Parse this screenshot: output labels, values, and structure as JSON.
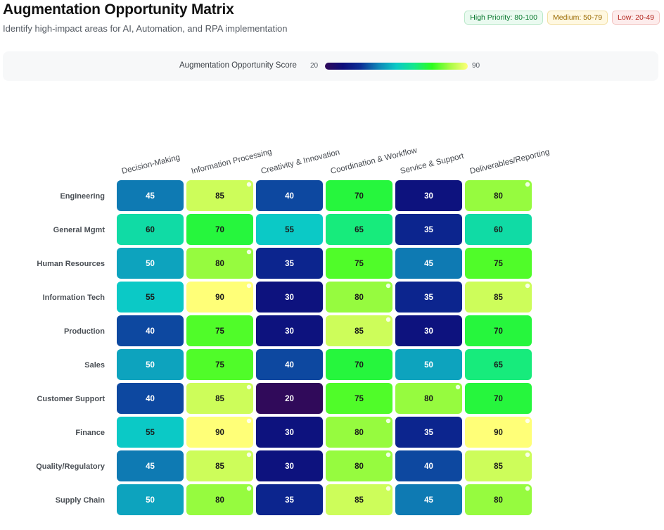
{
  "header": {
    "title": "Augmentation Opportunity Matrix",
    "subtitle": "Identify high-impact areas for AI, Automation, and RPA implementation"
  },
  "legend_badges": [
    {
      "label": "High Priority: 80-100",
      "color": "#0a7a2f",
      "bg": "#eafaf0",
      "border": "#b9e8c9"
    },
    {
      "label": "Medium: 50-79",
      "color": "#9a6a00",
      "bg": "#fff8e1",
      "border": "#f2dfa2"
    },
    {
      "label": "Low: 20-49",
      "color": "#b3261e",
      "bg": "#fdecec",
      "border": "#f3c3c0"
    }
  ],
  "scale": {
    "title": "Augmentation Opportunity Score",
    "min_label": "20",
    "max_label": "90",
    "colormap": [
      "#300a5a",
      "#0d0d7a",
      "#0c2f96",
      "#0e86b8",
      "#0bc9c6",
      "#13e88c",
      "#2dfc1e",
      "#a7fb44",
      "#ffff78"
    ]
  },
  "chart_data": {
    "type": "heatmap",
    "title": "Augmentation Opportunity Matrix",
    "columns": [
      "Decision-Making",
      "Information Processing",
      "Creativity & Innovation",
      "Coordination & Workflow",
      "Service & Support",
      "Deliverables/Reporting"
    ],
    "rows": [
      "Engineering",
      "General Mgmt",
      "Human Resources",
      "Information Tech",
      "Production",
      "Sales",
      "Customer Support",
      "Finance",
      "Quality/Regulatory",
      "Supply Chain"
    ],
    "values": [
      [
        45,
        85,
        40,
        70,
        30,
        80
      ],
      [
        60,
        70,
        55,
        65,
        35,
        60
      ],
      [
        50,
        80,
        35,
        75,
        45,
        75
      ],
      [
        55,
        90,
        30,
        80,
        35,
        85
      ],
      [
        40,
        75,
        30,
        85,
        30,
        70
      ],
      [
        50,
        75,
        40,
        70,
        50,
        65
      ],
      [
        40,
        85,
        20,
        75,
        80,
        70
      ],
      [
        55,
        90,
        30,
        80,
        35,
        90
      ],
      [
        45,
        85,
        30,
        80,
        40,
        85
      ],
      [
        50,
        80,
        35,
        85,
        45,
        80
      ]
    ],
    "color_range": [
      20,
      90
    ],
    "high_priority_threshold": 80
  }
}
